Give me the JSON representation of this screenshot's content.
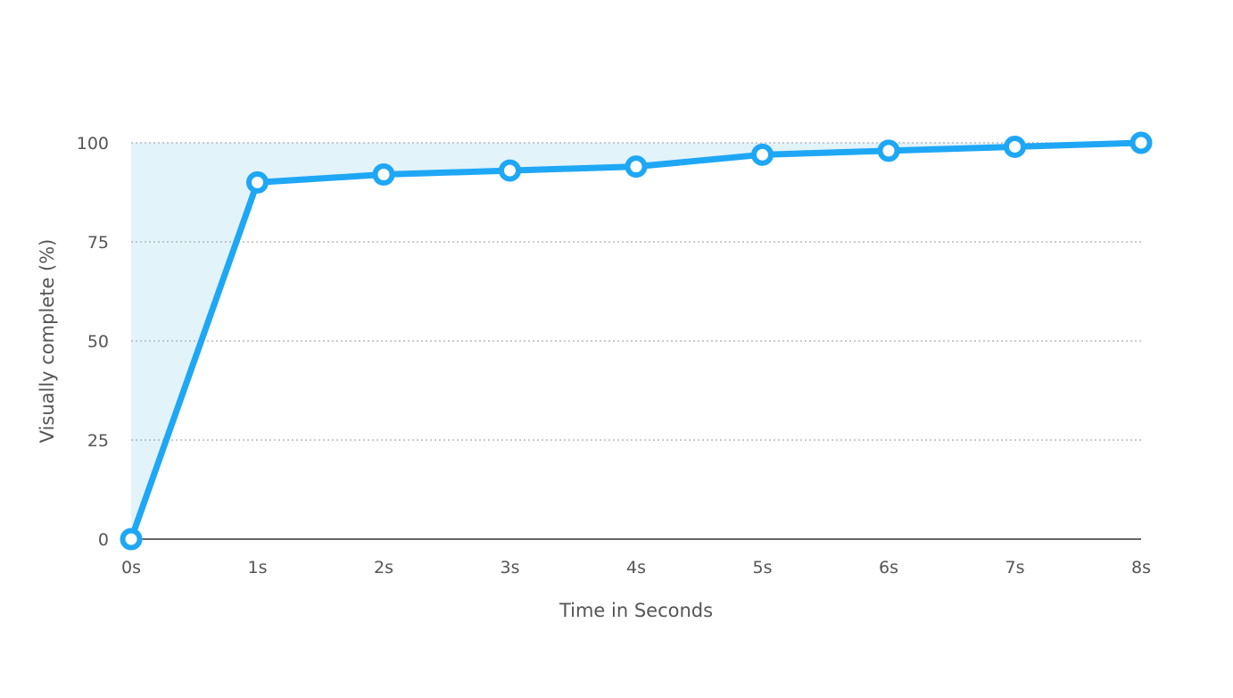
{
  "chart_data": {
    "type": "line",
    "title": "",
    "xlabel": "Time in Seconds",
    "ylabel": "Visually complete (%)",
    "x": [
      0,
      1,
      2,
      3,
      4,
      5,
      6,
      7,
      8
    ],
    "x_tick_labels": [
      "0s",
      "1s",
      "2s",
      "3s",
      "4s",
      "5s",
      "6s",
      "7s",
      "8s"
    ],
    "y_ticks": [
      0,
      25,
      50,
      75,
      100
    ],
    "y_tick_labels": [
      "0",
      "25",
      "50",
      "75",
      "100"
    ],
    "xlim": [
      0,
      8
    ],
    "ylim": [
      0,
      100
    ],
    "grid": "horizontal dotted",
    "legend": "none",
    "series": [
      {
        "values": [
          0,
          90,
          92,
          93,
          94,
          97,
          98,
          99,
          100
        ]
      }
    ],
    "shaded_region": "area between the line and 100%",
    "colors": {
      "line": "#1ea7f5",
      "marker_fill": "#ffffff",
      "shade": "#e2f3fa",
      "grid": "#aaaaaa",
      "axis": "#333333",
      "text": "#555555"
    }
  }
}
